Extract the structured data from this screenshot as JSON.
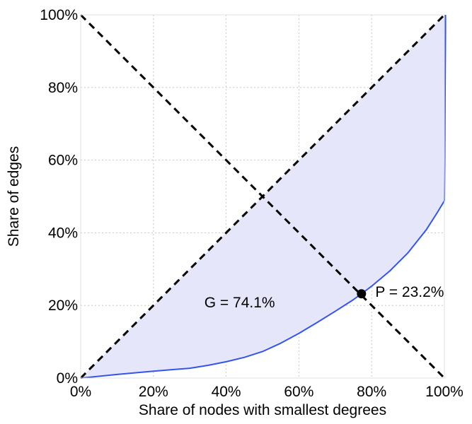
{
  "chart_data": {
    "type": "area",
    "title": "",
    "xlabel": "Share of nodes with smallest degrees",
    "ylabel": "Share of edges",
    "xlim": [
      0,
      100
    ],
    "ylim": [
      0,
      100
    ],
    "x_ticks": [
      "0%",
      "20%",
      "40%",
      "60%",
      "80%",
      "100%"
    ],
    "y_ticks": [
      "0%",
      "20%",
      "40%",
      "60%",
      "80%",
      "100%"
    ],
    "x_tick_values": [
      0,
      20,
      40,
      60,
      80,
      100
    ],
    "y_tick_values": [
      0,
      20,
      40,
      60,
      80,
      100
    ],
    "grid": true,
    "legend": "none",
    "series": [
      {
        "kind": "lorenz-curve",
        "color": "#3355ee",
        "fill": "#e6e6fa",
        "x": [
          0,
          10,
          20,
          30,
          35,
          40,
          45,
          50,
          55,
          60,
          65,
          70,
          75,
          77.2,
          80,
          85,
          90,
          95,
          98,
          100,
          100.1,
          100.2,
          100.3,
          100.3
        ],
        "y": [
          0,
          1,
          1.9,
          2.7,
          3.5,
          4.5,
          5.7,
          7.3,
          9.6,
          12.3,
          15.3,
          18.4,
          21.6,
          23.2,
          25.3,
          29.5,
          34.5,
          40.8,
          45.5,
          48.8,
          60,
          80,
          95,
          100
        ]
      },
      {
        "kind": "diagonal",
        "style": "dashed",
        "color": "#000000",
        "x": [
          0,
          100
        ],
        "y": [
          0,
          100
        ]
      },
      {
        "kind": "anti-diagonal",
        "style": "dashed",
        "color": "#000000",
        "x": [
          0,
          100
        ],
        "y": [
          100,
          0
        ]
      }
    ],
    "marker": {
      "x": 77.2,
      "y": 23.2,
      "color": "#000000"
    },
    "annotations": [
      {
        "text": "G = 74.1%",
        "x": 34,
        "y": 19.5
      },
      {
        "text": "P = 23.2%",
        "x": 81,
        "y": 22.4
      }
    ]
  }
}
